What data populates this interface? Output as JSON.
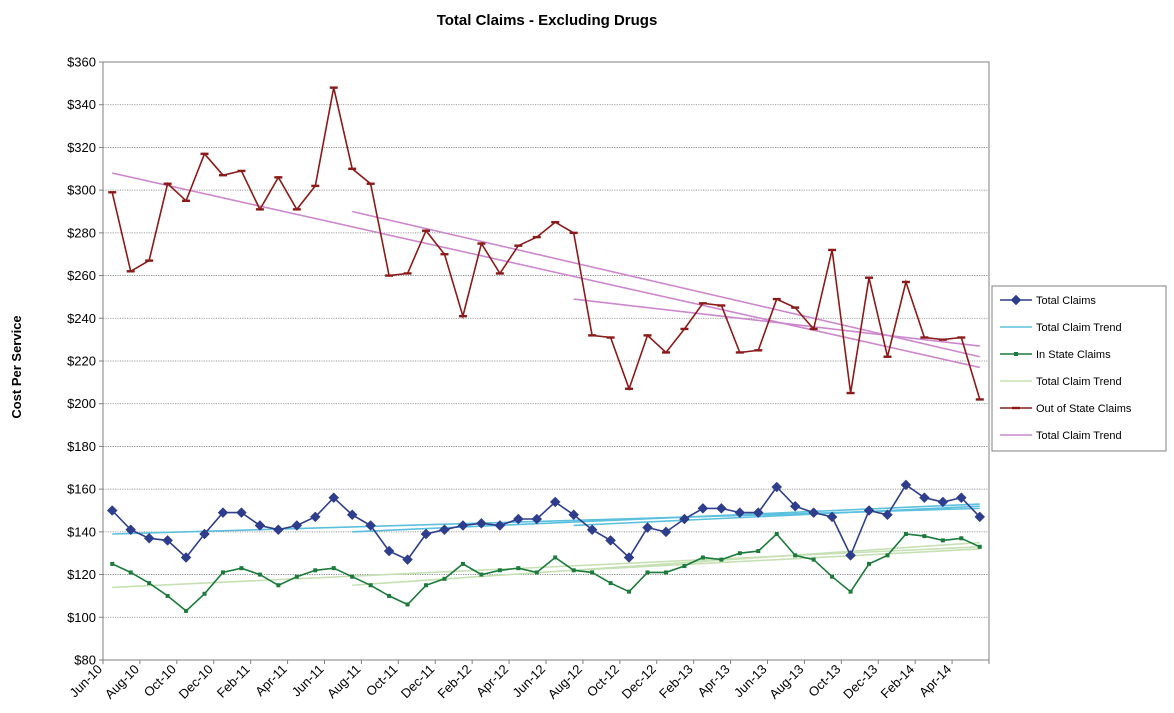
{
  "chart_data": {
    "type": "line",
    "title": "Total Claims - Excluding Drugs",
    "ylabel": "Cost Per Service",
    "xlabel": "",
    "ylim": [
      80,
      360
    ],
    "ytick_step": 20,
    "ytick_labels": [
      "$80",
      "$100",
      "$120",
      "$140",
      "$160",
      "$180",
      "$200",
      "$220",
      "$240",
      "$260",
      "$280",
      "$300",
      "$320",
      "$340",
      "$360"
    ],
    "grid": true,
    "legend_position": "right",
    "categories": [
      "Jun-10",
      "Jul-10",
      "Aug-10",
      "Sep-10",
      "Oct-10",
      "Nov-10",
      "Dec-10",
      "Jan-11",
      "Feb-11",
      "Mar-11",
      "Apr-11",
      "May-11",
      "Jun-11",
      "Jul-11",
      "Aug-11",
      "Sep-11",
      "Oct-11",
      "Nov-11",
      "Dec-11",
      "Jan-12",
      "Feb-12",
      "Mar-12",
      "Apr-12",
      "May-12",
      "Jun-12",
      "Jul-12",
      "Aug-12",
      "Sep-12",
      "Oct-12",
      "Nov-12",
      "Dec-12",
      "Jan-13",
      "Feb-13",
      "Mar-13",
      "Apr-13",
      "May-13",
      "Jun-13",
      "Jul-13",
      "Aug-13",
      "Sep-13",
      "Oct-13",
      "Nov-13",
      "Dec-13",
      "Jan-14",
      "Feb-14",
      "Mar-14",
      "Apr-14",
      "May-14"
    ],
    "tick_labels": [
      "Jun-10",
      "Aug-10",
      "Oct-10",
      "Dec-10",
      "Feb-11",
      "Apr-11",
      "Jun-11",
      "Aug-11",
      "Oct-11",
      "Dec-11",
      "Feb-12",
      "Apr-12",
      "Jun-12",
      "Aug-12",
      "Oct-12",
      "Dec-12",
      "Feb-13",
      "Apr-13",
      "Jun-13",
      "Aug-13",
      "Oct-13",
      "Dec-13",
      "Feb-14",
      "Apr-14"
    ],
    "series": [
      {
        "name": "Total Claims",
        "color": "#2E3D8C",
        "marker": "diamond",
        "values": [
          150,
          141,
          137,
          136,
          128,
          139,
          149,
          149,
          143,
          141,
          143,
          147,
          156,
          148,
          143,
          131,
          127,
          139,
          141,
          143,
          144,
          143,
          146,
          146,
          154,
          148,
          141,
          136,
          128,
          142,
          140,
          146,
          151,
          151,
          149,
          149,
          161,
          152,
          149,
          147,
          129,
          150,
          148,
          162,
          156,
          154,
          156,
          147
        ]
      },
      {
        "name": "In State Claims",
        "color": "#1B7A3C",
        "marker": "square",
        "values": [
          125,
          121,
          116,
          110,
          103,
          111,
          121,
          123,
          120,
          115,
          119,
          122,
          123,
          119,
          115,
          110,
          106,
          115,
          118,
          125,
          120,
          122,
          123,
          121,
          128,
          122,
          121,
          116,
          112,
          121,
          121,
          124,
          128,
          127,
          130,
          131,
          139,
          129,
          127,
          119,
          112,
          125,
          129,
          139,
          138,
          136,
          137,
          133
        ]
      },
      {
        "name": "Out of State Claims",
        "color": "#8B1A1A",
        "marker": "dash",
        "values": [
          299,
          262,
          267,
          303,
          295,
          317,
          307,
          309,
          291,
          306,
          291,
          302,
          348,
          310,
          303,
          260,
          261,
          281,
          270,
          241,
          275,
          261,
          274,
          278,
          285,
          280,
          232,
          231,
          207,
          232,
          224,
          235,
          247,
          246,
          224,
          225,
          249,
          245,
          235,
          272,
          205,
          259,
          222,
          257,
          231,
          230,
          231,
          202
        ]
      }
    ],
    "trends": [
      {
        "name": "Total Claim Trend",
        "color": "#5BC0DE",
        "lines": [
          [
            [
              0,
              139
            ],
            [
              47,
              151
            ]
          ],
          [
            [
              13,
              140
            ],
            [
              47,
              153
            ]
          ],
          [
            [
              25,
              143
            ],
            [
              47,
              152
            ]
          ]
        ]
      },
      {
        "name": "Total Claim Trend",
        "color": "#C6E0B4",
        "lines": [
          [
            [
              0,
              114
            ],
            [
              47,
              133
            ]
          ],
          [
            [
              13,
              115
            ],
            [
              47,
              135
            ]
          ],
          [
            [
              25,
              122
            ],
            [
              47,
              132
            ]
          ]
        ]
      },
      {
        "name": "Total Claim Trend",
        "color": "#CC88CC",
        "lines": [
          [
            [
              0,
              308
            ],
            [
              47,
              217
            ]
          ],
          [
            [
              13,
              290
            ],
            [
              47,
              222
            ]
          ],
          [
            [
              25,
              249
            ],
            [
              47,
              227
            ]
          ]
        ]
      }
    ],
    "legend": [
      {
        "label": "Total Claims",
        "kind": "series",
        "color": "#2E3D8C",
        "marker": "diamond"
      },
      {
        "label": "Total Claim Trend",
        "kind": "trend",
        "color": "#5BC0DE"
      },
      {
        "label": "In State Claims",
        "kind": "series",
        "color": "#1B7A3C",
        "marker": "square"
      },
      {
        "label": "Total Claim Trend",
        "kind": "trend",
        "color": "#C6E0B4"
      },
      {
        "label": "Out of State Claims",
        "kind": "series",
        "color": "#8B1A1A",
        "marker": "dash"
      },
      {
        "label": "Total Claim Trend",
        "kind": "trend",
        "color": "#CC88CC"
      }
    ]
  }
}
